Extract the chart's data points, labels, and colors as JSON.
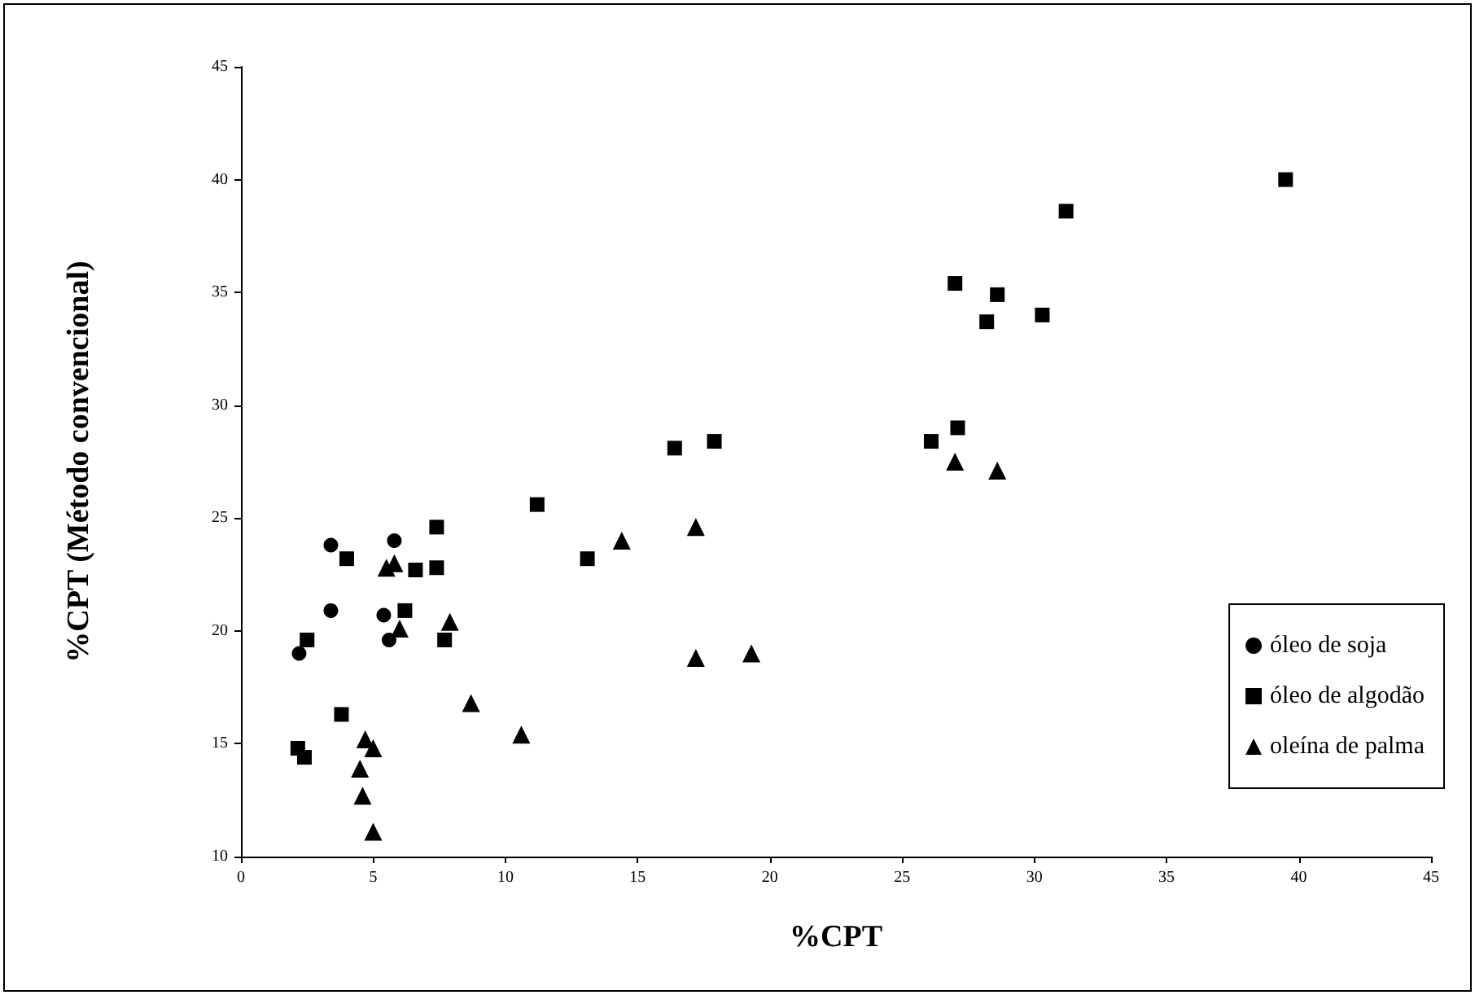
{
  "chart_data": {
    "type": "scatter",
    "xlabel": "%CPT",
    "ylabel": "%CPT (Método convencional)",
    "xlim": [
      0,
      45
    ],
    "xticks": [
      0,
      5,
      10,
      15,
      20,
      25,
      30,
      35,
      40,
      45
    ],
    "ylim": [
      10,
      45
    ],
    "yticks": [
      10,
      15,
      20,
      25,
      30,
      35,
      40,
      45
    ],
    "grid": false,
    "legend": "right",
    "series": [
      {
        "name": "óleo de soja",
        "color": "#000000",
        "marker": "circle",
        "x": [
          2.2,
          3.4,
          5.8,
          3.4,
          5.4,
          5.6
        ],
        "values": [
          19.0,
          23.8,
          24.0,
          20.9,
          20.7,
          19.6
        ]
      },
      {
        "name": "óleo de algodão",
        "color": "#000000",
        "marker": "square",
        "x": [
          2.15,
          2.4,
          2.5,
          4.0,
          3.8,
          6.2,
          6.6,
          7.4,
          7.4,
          7.7,
          11.2,
          13.1,
          16.4,
          17.9,
          26.1,
          27.1,
          27.0,
          28.6,
          28.2,
          30.3,
          31.2,
          39.5
        ],
        "values": [
          14.8,
          14.4,
          19.6,
          23.2,
          16.3,
          20.9,
          22.7,
          22.8,
          24.6,
          19.6,
          25.6,
          23.2,
          28.1,
          28.4,
          28.4,
          29.0,
          35.4,
          34.9,
          33.7,
          34.0,
          38.6,
          40.0
        ]
      },
      {
        "name": "oleína de palma",
        "color": "#000000",
        "marker": "triangle",
        "x": [
          5.5,
          5.8,
          6.0,
          7.9,
          8.7,
          10.6,
          4.7,
          5.0,
          4.5,
          4.6,
          5.0,
          14.4,
          17.2,
          17.2,
          19.3,
          27.0,
          28.6
        ],
        "values": [
          22.8,
          23.0,
          20.1,
          20.4,
          16.8,
          15.4,
          15.2,
          14.8,
          13.9,
          12.7,
          11.1,
          24.0,
          24.6,
          18.8,
          19.0,
          27.5,
          27.1
        ]
      }
    ]
  }
}
